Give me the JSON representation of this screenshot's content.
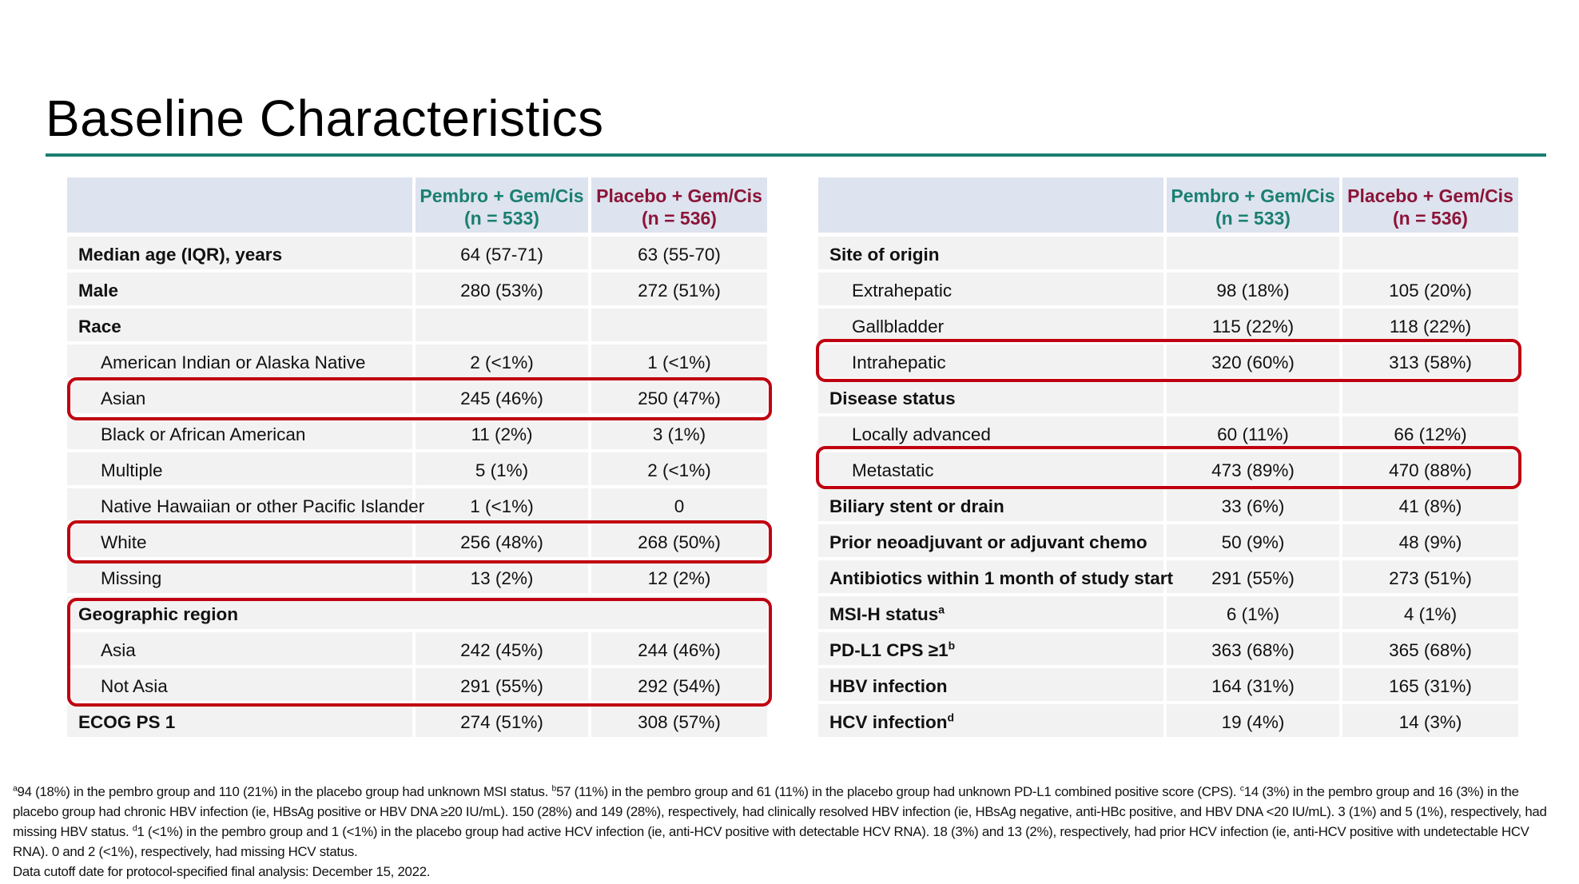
{
  "title": "Baseline Characteristics",
  "colors": {
    "rule": "#1a7f71",
    "pembro": "#1a7f71",
    "placebo": "#8b1538",
    "highlight": "#c00010",
    "header_bg": "#dde3ef",
    "row_bg": "#f2f2f2"
  },
  "left_table": {
    "headers": {
      "pembro": "Pembro + Gem/Cis",
      "pembro_n": "(n = 533)",
      "placebo": "Placebo + Gem/Cis",
      "placebo_n": "(n = 536)"
    },
    "rows": [
      {
        "label": "Median age (IQR), years",
        "pembro": "64 (57-71)",
        "placebo": "63 (55-70)"
      },
      {
        "label": "Male",
        "pembro": "280 (53%)",
        "placebo": "272 (51%)"
      },
      {
        "label": "Race",
        "pembro": "",
        "placebo": ""
      },
      {
        "label": "American Indian or Alaska Native",
        "pembro": "2 (<1%)",
        "placebo": "1 (<1%)"
      },
      {
        "label": "Asian",
        "pembro": "245 (46%)",
        "placebo": "250 (47%)"
      },
      {
        "label": "Black or African American",
        "pembro": "11 (2%)",
        "placebo": "3 (1%)"
      },
      {
        "label": "Multiple",
        "pembro": "5 (1%)",
        "placebo": "2 (<1%)"
      },
      {
        "label": "Native Hawaiian or other Pacific Islander",
        "pembro": "1 (<1%)",
        "placebo": "0"
      },
      {
        "label": "White",
        "pembro": "256 (48%)",
        "placebo": "268 (50%)"
      },
      {
        "label": "Missing",
        "pembro": "13 (2%)",
        "placebo": "12 (2%)"
      },
      {
        "label": "Geographic region"
      },
      {
        "label": "Asia",
        "pembro": "242 (45%)",
        "placebo": "244 (46%)"
      },
      {
        "label": "Not Asia",
        "pembro": "291 (55%)",
        "placebo": "292 (54%)"
      },
      {
        "label": "ECOG PS 1",
        "pembro": "274 (51%)",
        "placebo": "308 (57%)"
      }
    ]
  },
  "right_table": {
    "headers": {
      "pembro": "Pembro + Gem/Cis",
      "pembro_n": "(n = 533)",
      "placebo": "Placebo + Gem/Cis",
      "placebo_n": "(n = 536)"
    },
    "rows": [
      {
        "label": "Site of origin",
        "pembro": "",
        "placebo": ""
      },
      {
        "label": "Extrahepatic",
        "pembro": "98 (18%)",
        "placebo": "105 (20%)"
      },
      {
        "label": "Gallbladder",
        "pembro": "115 (22%)",
        "placebo": "118 (22%)"
      },
      {
        "label": "Intrahepatic",
        "pembro": "320 (60%)",
        "placebo": "313 (58%)"
      },
      {
        "label": "Disease status",
        "pembro": "",
        "placebo": ""
      },
      {
        "label": "Locally advanced",
        "pembro": "60 (11%)",
        "placebo": "66 (12%)"
      },
      {
        "label": "Metastatic",
        "pembro": "473 (89%)",
        "placebo": "470 (88%)"
      },
      {
        "label": "Biliary stent or drain",
        "pembro": "33 (6%)",
        "placebo": "41 (8%)"
      },
      {
        "label": "Prior neoadjuvant or adjuvant chemo",
        "pembro": "50 (9%)",
        "placebo": "48 (9%)"
      },
      {
        "label": "Antibiotics within 1 month of study start",
        "pembro": "291 (55%)",
        "placebo": "273 (51%)"
      },
      {
        "label": "MSI-H status",
        "sup": "a",
        "pembro": "6 (1%)",
        "placebo": "4 (1%)"
      },
      {
        "label": "PD-L1 CPS ≥1",
        "sup": "b",
        "pembro": "363 (68%)",
        "placebo": "365 (68%)"
      },
      {
        "label": "HBV infection",
        "pembro": "164 (31%)",
        "placebo": "165 (31%)"
      },
      {
        "label": "HCV infection",
        "sup": "d",
        "pembro": "19 (4%)",
        "placebo": "14 (3%)"
      }
    ]
  },
  "footnotes": {
    "a_mark": "a",
    "a": "94 (18%) in the pembro group and 110 (21%) in the placebo group had unknown MSI status.",
    "b_mark": "b",
    "b": "57 (11%) in the pembro group and 61 (11%) in the placebo group had unknown PD-L1 combined positive score (CPS).",
    "c_mark": "c",
    "c": "14 (3%) in the pembro group and 16 (3%) in the placebo group had chronic HBV infection (ie, HBsAg positive or HBV DNA ≥20 IU/mL). 150 (28%) and 149 (28%), respectively, had clinically resolved HBV infection (ie, HBsAg negative, anti-HBc positive, and HBV DNA <20 IU/mL). 3 (1%) and 5 (1%), respectively, had missing HBV status.",
    "d_mark": "d",
    "d": "1 (<1%) in the pembro group and 1 (<1%) in the placebo group had active HCV infection (ie, anti-HCV positive with detectable HCV RNA). 18 (3%) and 13 (2%), respectively, had prior HCV infection (ie, anti-HCV positive with undetectable HCV RNA). 0 and 2 (<1%), respectively, had missing HCV status.",
    "cutoff": "Data cutoff date for protocol-specified final analysis: December 15, 2022."
  }
}
